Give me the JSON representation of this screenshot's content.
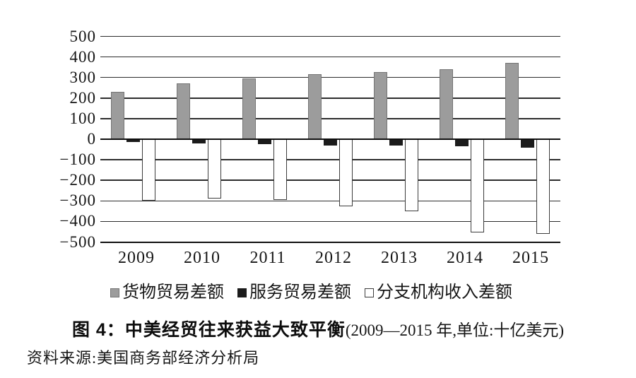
{
  "figure_caption": {
    "label": "图 4：",
    "title": "中美经贸往来获益大致平衡",
    "note": "(2009—2015 年,单位:十亿美元)"
  },
  "source_line": "资料来源:美国商务部经济分析局",
  "chart_data": {
    "type": "bar",
    "title": "图 4：中美经贸往来获益大致平衡(2009—2015 年,单位:十亿美元)",
    "unit": "十亿美元",
    "categories": [
      "2009",
      "2010",
      "2011",
      "2012",
      "2013",
      "2014",
      "2015"
    ],
    "series": [
      {
        "key": "goods-trade-balance",
        "name": "货物贸易差额",
        "color": "#9c9c9c",
        "border_color": "#757575",
        "values": [
          230,
          270,
          295,
          315,
          325,
          340,
          370
        ]
      },
      {
        "key": "services-trade-balance",
        "name": "服务贸易差额",
        "color": "#1b1b1b",
        "border_color": "#1b1b1b",
        "values": [
          -15,
          -20,
          -25,
          -30,
          -30,
          -35,
          -40
        ]
      },
      {
        "key": "affiliate-income-balance",
        "name": "分支机构收入差额",
        "color": "#ffffff",
        "border_color": "#3c3c3c",
        "values": [
          -300,
          -290,
          -295,
          -325,
          -350,
          -455,
          -460
        ]
      }
    ],
    "ylim": [
      -500,
      500
    ],
    "y_ticks": [
      500,
      400,
      300,
      200,
      100,
      0,
      -100,
      -200,
      -300,
      -400,
      -500
    ],
    "y_tick_labels": [
      "500",
      "400",
      "300",
      "200",
      "100",
      "0",
      "−100",
      "−200",
      "−300",
      "−400",
      "−500"
    ],
    "grid": true,
    "legend_position": "bottom",
    "xlabel": "",
    "ylabel": ""
  }
}
